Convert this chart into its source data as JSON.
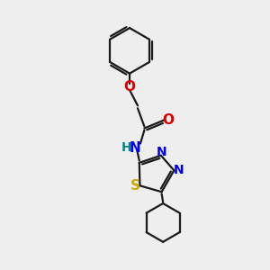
{
  "bg_color": "#eeeeee",
  "bond_color": "#1a1a1a",
  "N_color": "#0000ee",
  "O_color": "#dd0000",
  "S_color": "#ccaa00",
  "NH_H_color": "#008888",
  "line_width": 1.6,
  "figsize": [
    3.0,
    3.0
  ],
  "dpi": 100,
  "xlim": [
    0,
    10
  ],
  "ylim": [
    0,
    10
  ]
}
